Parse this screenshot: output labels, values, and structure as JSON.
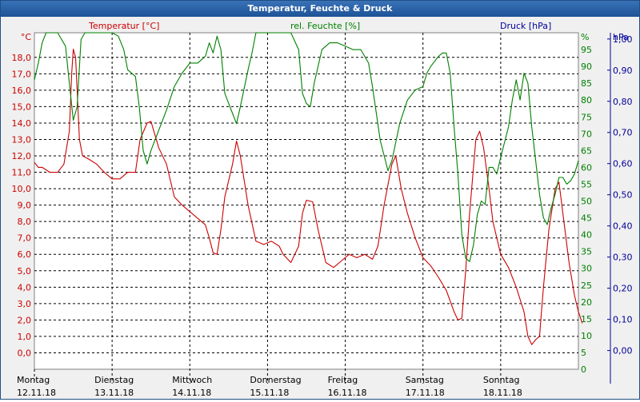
{
  "title": "Temperatur, Feuchte & Druck",
  "chart_data": {
    "type": "line",
    "title": "Temperatur, Feuchte & Druck",
    "colors": {
      "temperature": "#cc0000",
      "humidity": "#008000",
      "pressure": "#000099",
      "grid": "#000000",
      "titlebar": "#1d5296"
    },
    "axes": {
      "temperature": {
        "unit": "°C",
        "label": "Temperatur [°C]",
        "range": [
          -1,
          19.5
        ],
        "ticks": [
          "0,0",
          "1,0",
          "2,0",
          "3,0",
          "4,0",
          "5,0",
          "6,0",
          "7,0",
          "8,0",
          "9,0",
          "10,0",
          "11,0",
          "12,0",
          "13,0",
          "14,0",
          "15,0",
          "16,0",
          "17,0",
          "18,0"
        ],
        "tick_values": [
          0,
          1,
          2,
          3,
          4,
          5,
          6,
          7,
          8,
          9,
          10,
          11,
          12,
          13,
          14,
          15,
          16,
          17,
          18
        ]
      },
      "humidity": {
        "unit": "%",
        "label": "rel. Feuchte [%]",
        "range": [
          0,
          100
        ],
        "ticks": [
          "0",
          "5",
          "10",
          "15",
          "20",
          "25",
          "30",
          "35",
          "40",
          "45",
          "50",
          "55",
          "60",
          "65",
          "70",
          "75",
          "80",
          "85",
          "90",
          "95"
        ],
        "tick_values": [
          0,
          5,
          10,
          15,
          20,
          25,
          30,
          35,
          40,
          45,
          50,
          55,
          60,
          65,
          70,
          75,
          80,
          85,
          90,
          95
        ]
      },
      "pressure": {
        "unit": "hPa",
        "label": "Druck [hPa]",
        "range": [
          -0.06,
          1.02
        ],
        "ticks": [
          "0,00",
          "0,10",
          "0,20",
          "0,30",
          "0,40",
          "0,50",
          "0,60",
          "0,70",
          "0,80",
          "0,90",
          "1,00"
        ],
        "tick_values": [
          0,
          0.1,
          0.2,
          0.3,
          0.4,
          0.5,
          0.6,
          0.7,
          0.8,
          0.9,
          1.0
        ]
      }
    },
    "x": {
      "days": [
        {
          "name": "Montag",
          "date": "12.11.18"
        },
        {
          "name": "Dienstag",
          "date": "13.11.18"
        },
        {
          "name": "Mittwoch",
          "date": "14.11.18"
        },
        {
          "name": "Donnerstag",
          "date": "15.11.18"
        },
        {
          "name": "Freitag",
          "date": "16.11.18"
        },
        {
          "name": "Samstag",
          "date": "17.11.18"
        },
        {
          "name": "Sonntag",
          "date": "18.11.18"
        }
      ],
      "range_days": [
        0,
        7
      ]
    },
    "grid": true,
    "series": [
      {
        "name": "Temperatur [°C]",
        "axis": "temperature",
        "points": [
          [
            0,
            11.6
          ],
          [
            0.05,
            11.3
          ],
          [
            0.1,
            11.3
          ],
          [
            0.2,
            11.0
          ],
          [
            0.3,
            11.0
          ],
          [
            0.38,
            11.5
          ],
          [
            0.45,
            13.5
          ],
          [
            0.48,
            17.0
          ],
          [
            0.5,
            18.5
          ],
          [
            0.53,
            18.0
          ],
          [
            0.58,
            13.0
          ],
          [
            0.62,
            12.0
          ],
          [
            0.7,
            11.8
          ],
          [
            0.8,
            11.5
          ],
          [
            0.9,
            11.0
          ],
          [
            1.0,
            10.6
          ],
          [
            1.1,
            10.6
          ],
          [
            1.2,
            11.0
          ],
          [
            1.3,
            11.0
          ],
          [
            1.36,
            13.0
          ],
          [
            1.45,
            14.0
          ],
          [
            1.5,
            14.1
          ],
          [
            1.6,
            12.5
          ],
          [
            1.7,
            11.5
          ],
          [
            1.8,
            9.5
          ],
          [
            1.9,
            9.0
          ],
          [
            2.0,
            8.6
          ],
          [
            2.1,
            8.2
          ],
          [
            2.2,
            7.8
          ],
          [
            2.25,
            7.0
          ],
          [
            2.3,
            6.1
          ],
          [
            2.35,
            6.0
          ],
          [
            2.4,
            7.5
          ],
          [
            2.45,
            9.5
          ],
          [
            2.55,
            11.5
          ],
          [
            2.6,
            12.9
          ],
          [
            2.65,
            12.0
          ],
          [
            2.75,
            9.0
          ],
          [
            2.85,
            6.8
          ],
          [
            2.95,
            6.6
          ],
          [
            3.05,
            6.8
          ],
          [
            3.15,
            6.5
          ],
          [
            3.2,
            6.0
          ],
          [
            3.3,
            5.5
          ],
          [
            3.4,
            6.5
          ],
          [
            3.45,
            8.5
          ],
          [
            3.5,
            9.3
          ],
          [
            3.58,
            9.2
          ],
          [
            3.65,
            7.5
          ],
          [
            3.75,
            5.5
          ],
          [
            3.85,
            5.2
          ],
          [
            3.95,
            5.6
          ],
          [
            4.05,
            6.0
          ],
          [
            4.15,
            5.8
          ],
          [
            4.25,
            6.0
          ],
          [
            4.35,
            5.7
          ],
          [
            4.42,
            6.5
          ],
          [
            4.5,
            9.0
          ],
          [
            4.6,
            11.5
          ],
          [
            4.65,
            12.0
          ],
          [
            4.72,
            10.0
          ],
          [
            4.8,
            8.5
          ],
          [
            4.9,
            7.0
          ],
          [
            5.0,
            5.8
          ],
          [
            5.1,
            5.3
          ],
          [
            5.2,
            4.6
          ],
          [
            5.3,
            3.8
          ],
          [
            5.4,
            2.5
          ],
          [
            5.45,
            2.0
          ],
          [
            5.5,
            2.1
          ],
          [
            5.55,
            5.0
          ],
          [
            5.6,
            8.5
          ],
          [
            5.68,
            13.0
          ],
          [
            5.73,
            13.5
          ],
          [
            5.78,
            12.5
          ],
          [
            5.85,
            10.0
          ],
          [
            5.9,
            8.0
          ],
          [
            6.0,
            6.0
          ],
          [
            6.1,
            5.2
          ],
          [
            6.2,
            4.0
          ],
          [
            6.3,
            2.5
          ],
          [
            6.35,
            1.0
          ],
          [
            6.4,
            0.5
          ],
          [
            6.45,
            0.8
          ],
          [
            6.5,
            1.0
          ],
          [
            6.55,
            4.0
          ],
          [
            6.62,
            7.5
          ],
          [
            6.7,
            10.0
          ],
          [
            6.75,
            10.4
          ],
          [
            6.8,
            8.5
          ],
          [
            6.88,
            5.5
          ],
          [
            6.95,
            3.5
          ],
          [
            7.0,
            2.5
          ],
          [
            7.05,
            1.8
          ]
        ]
      },
      {
        "name": "rel. Feuchte [%]",
        "axis": "humidity",
        "points": [
          [
            0,
            86
          ],
          [
            0.05,
            91
          ],
          [
            0.1,
            97
          ],
          [
            0.15,
            100
          ],
          [
            0.3,
            100
          ],
          [
            0.4,
            96
          ],
          [
            0.45,
            85
          ],
          [
            0.5,
            74
          ],
          [
            0.55,
            78
          ],
          [
            0.6,
            98
          ],
          [
            0.65,
            100
          ],
          [
            0.8,
            100
          ],
          [
            1.0,
            100
          ],
          [
            1.08,
            99
          ],
          [
            1.15,
            95
          ],
          [
            1.2,
            89
          ],
          [
            1.3,
            87
          ],
          [
            1.35,
            78
          ],
          [
            1.4,
            65
          ],
          [
            1.45,
            61
          ],
          [
            1.5,
            65
          ],
          [
            1.6,
            71
          ],
          [
            1.7,
            77
          ],
          [
            1.8,
            84
          ],
          [
            1.9,
            88
          ],
          [
            2.0,
            91
          ],
          [
            2.1,
            91
          ],
          [
            2.2,
            93
          ],
          [
            2.25,
            97
          ],
          [
            2.3,
            94
          ],
          [
            2.35,
            99
          ],
          [
            2.4,
            95
          ],
          [
            2.45,
            82
          ],
          [
            2.55,
            76
          ],
          [
            2.6,
            73
          ],
          [
            2.65,
            78
          ],
          [
            2.75,
            89
          ],
          [
            2.8,
            94
          ],
          [
            2.85,
            100
          ],
          [
            2.95,
            100
          ],
          [
            3.1,
            100
          ],
          [
            3.3,
            100
          ],
          [
            3.4,
            95
          ],
          [
            3.45,
            82
          ],
          [
            3.5,
            79
          ],
          [
            3.55,
            78
          ],
          [
            3.6,
            85
          ],
          [
            3.7,
            95
          ],
          [
            3.8,
            97
          ],
          [
            3.9,
            97
          ],
          [
            4.0,
            96
          ],
          [
            4.1,
            95
          ],
          [
            4.2,
            95
          ],
          [
            4.3,
            91
          ],
          [
            4.35,
            84
          ],
          [
            4.45,
            68
          ],
          [
            4.55,
            59
          ],
          [
            4.6,
            62
          ],
          [
            4.7,
            73
          ],
          [
            4.8,
            80
          ],
          [
            4.9,
            83
          ],
          [
            5.0,
            84
          ],
          [
            5.05,
            88
          ],
          [
            5.1,
            90
          ],
          [
            5.2,
            93
          ],
          [
            5.25,
            94
          ],
          [
            5.3,
            94
          ],
          [
            5.35,
            88
          ],
          [
            5.4,
            72
          ],
          [
            5.45,
            58
          ],
          [
            5.5,
            40
          ],
          [
            5.55,
            33
          ],
          [
            5.6,
            32
          ],
          [
            5.65,
            37
          ],
          [
            5.7,
            46
          ],
          [
            5.75,
            50
          ],
          [
            5.8,
            49
          ],
          [
            5.85,
            60
          ],
          [
            5.9,
            60
          ],
          [
            5.95,
            58
          ],
          [
            6.0,
            63
          ],
          [
            6.1,
            72
          ],
          [
            6.15,
            80
          ],
          [
            6.2,
            86
          ],
          [
            6.25,
            80
          ],
          [
            6.3,
            88
          ],
          [
            6.35,
            85
          ],
          [
            6.4,
            72
          ],
          [
            6.45,
            62
          ],
          [
            6.5,
            52
          ],
          [
            6.55,
            45
          ],
          [
            6.6,
            43
          ],
          [
            6.65,
            48
          ],
          [
            6.7,
            52
          ],
          [
            6.75,
            57
          ],
          [
            6.8,
            57
          ],
          [
            6.85,
            55
          ],
          [
            6.9,
            56
          ],
          [
            6.95,
            58
          ],
          [
            7.0,
            62
          ]
        ]
      }
    ]
  }
}
